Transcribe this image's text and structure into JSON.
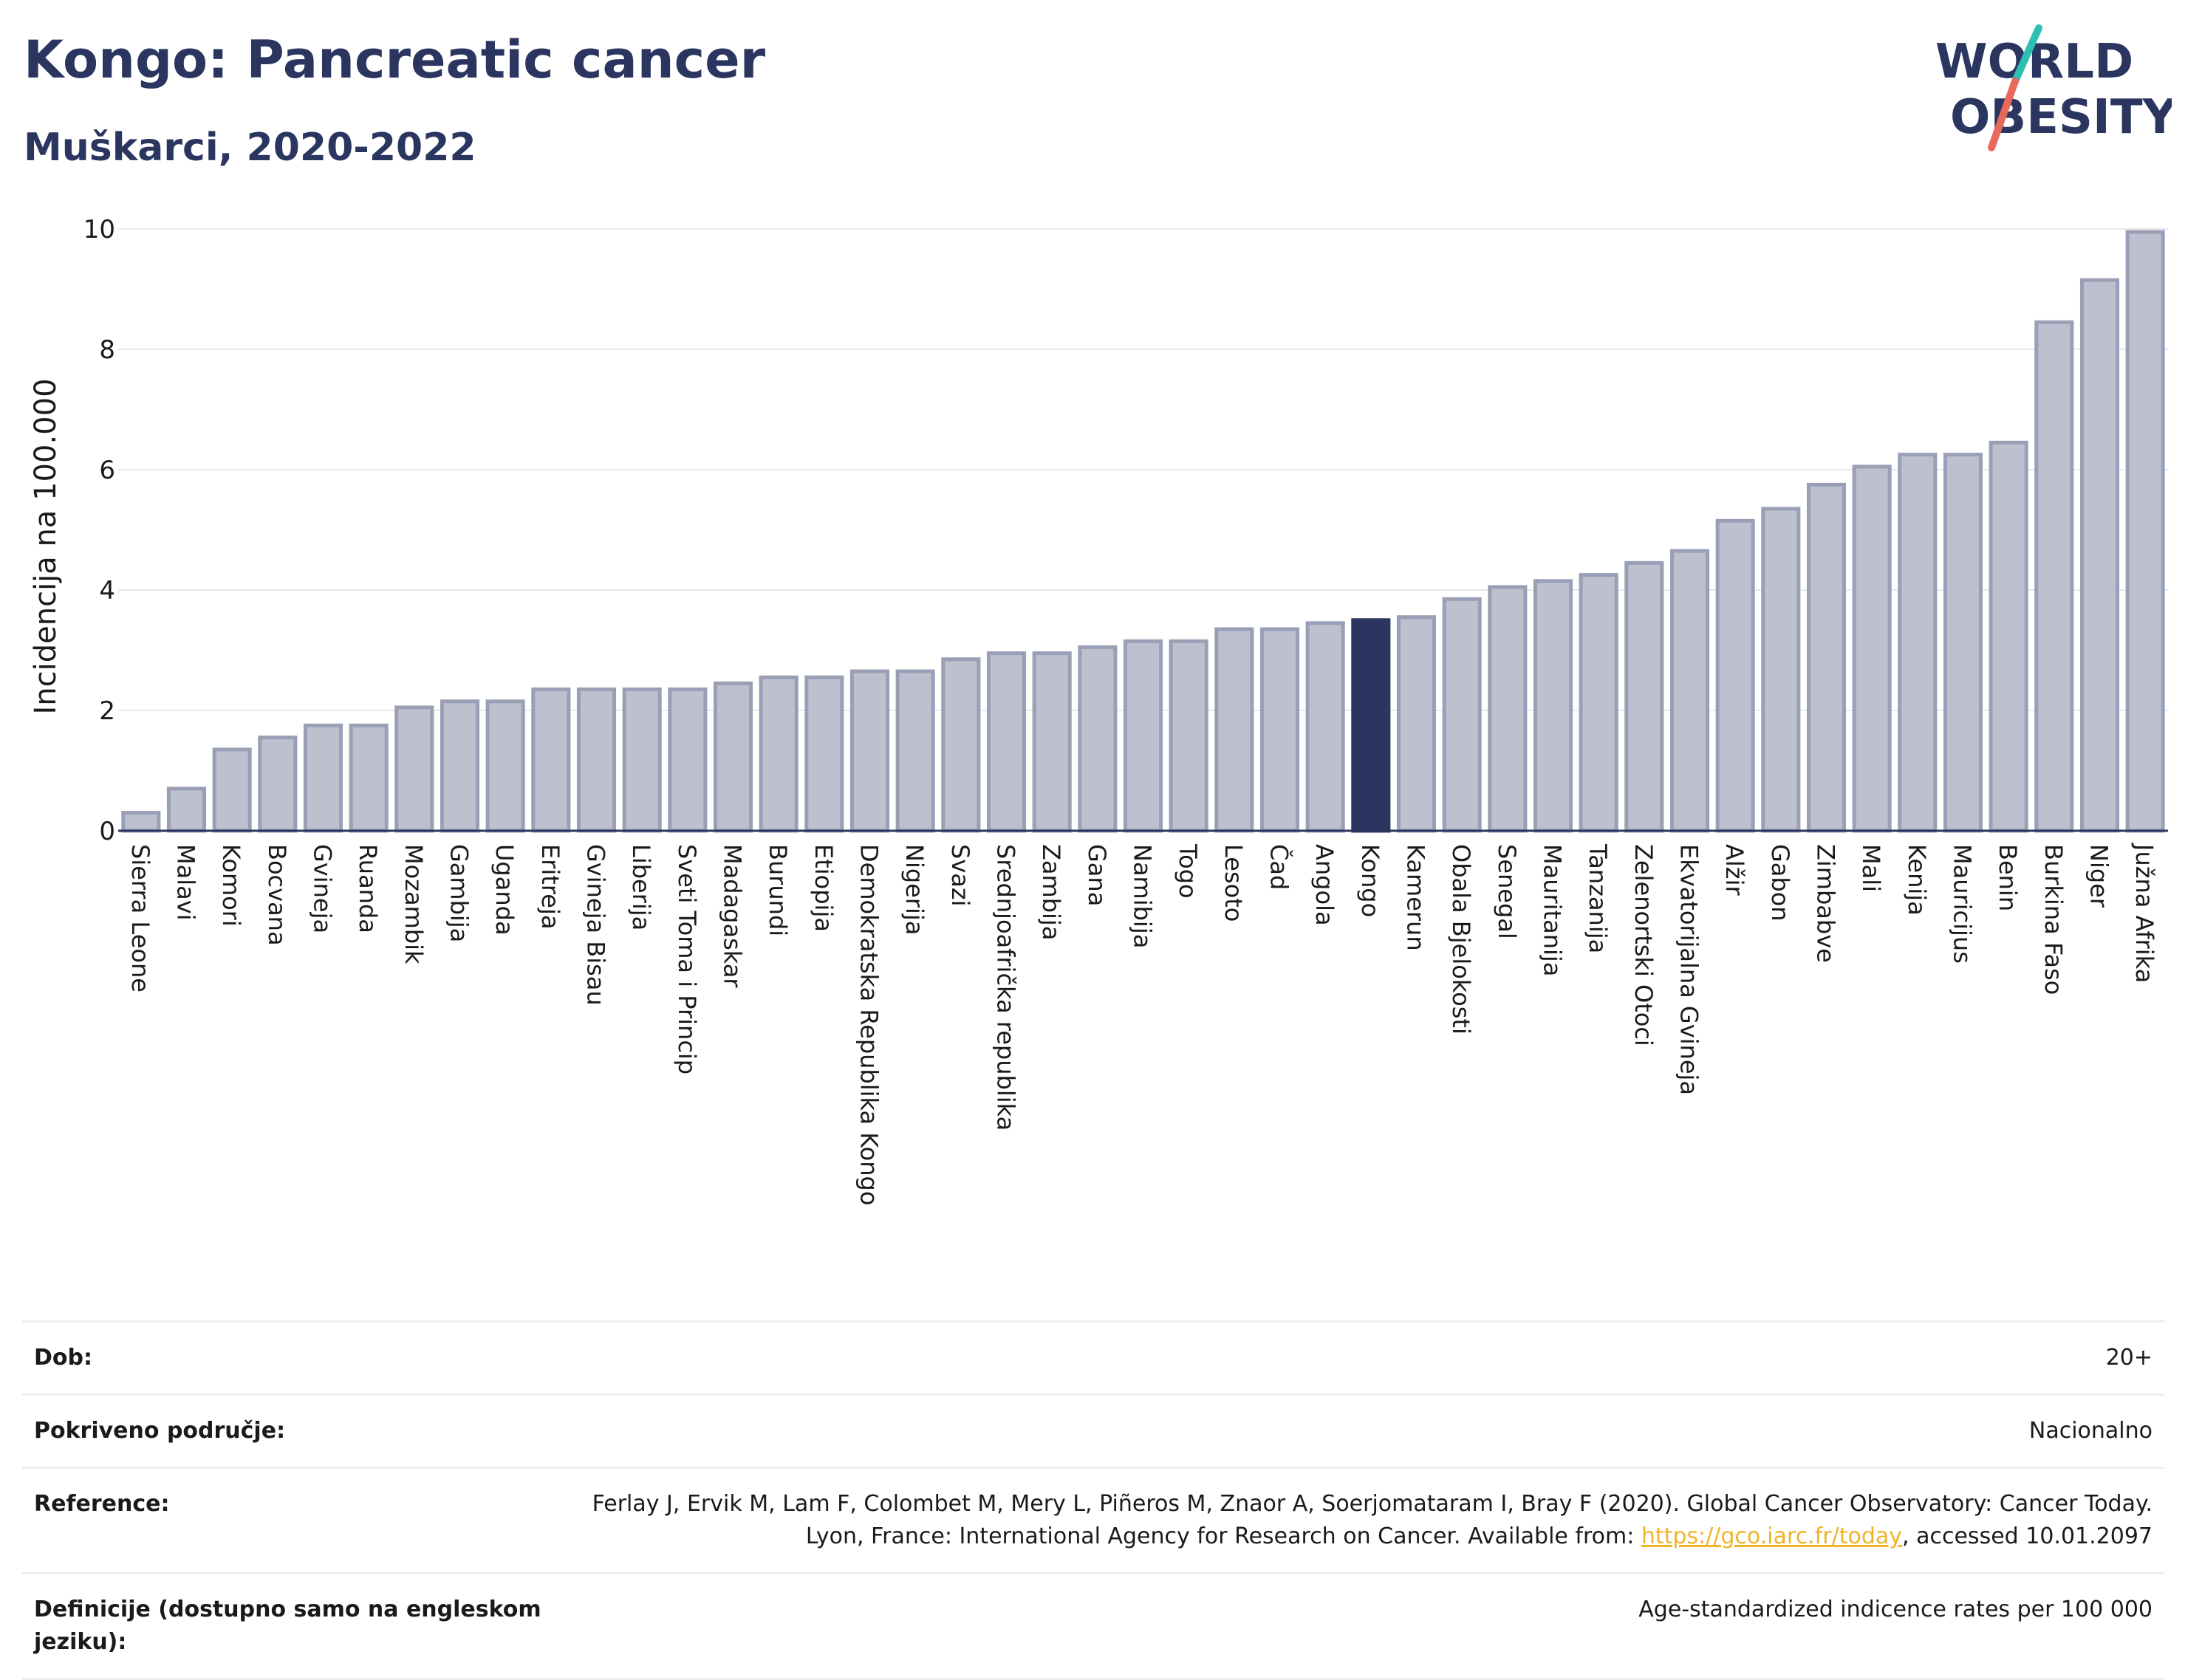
{
  "title": "Kongo: Pancreatic cancer",
  "subtitle": "Muškarci, 2020-2022",
  "logo": {
    "line1": "WORLD",
    "line2": "OBESITY",
    "accent_colors": [
      "#2fbfb2",
      "#e8685a"
    ]
  },
  "colors": {
    "bar": "#bcc0cf",
    "bar_edge": "#9a9fb6",
    "highlight": "#2b3660",
    "grid": "#e6e8ee",
    "link": "#f0b429"
  },
  "chart_data": {
    "type": "bar",
    "title": "Kongo: Pancreatic cancer",
    "subtitle": "Muškarci, 2020-2022",
    "xlabel": "",
    "ylabel": "Incidencija na 100.000",
    "ylim": [
      0,
      10
    ],
    "yticks": [
      0,
      2,
      4,
      6,
      8,
      10
    ],
    "grid": true,
    "highlight": "Kongo",
    "categories": [
      "Sierra Leone",
      "Malavi",
      "Komori",
      "Bocvana",
      "Gvineja",
      "Ruanda",
      "Mozambik",
      "Gambija",
      "Uganda",
      "Eritreja",
      "Gvineja Bisau",
      "Liberija",
      "Sveti Toma i Princip",
      "Madagaskar",
      "Burundi",
      "Etiopija",
      "Demokratska Republika Kongo",
      "Nigerija",
      "Svazi",
      "Srednjoafrička republika",
      "Zambija",
      "Gana",
      "Namibija",
      "Togo",
      "Lesoto",
      "Čad",
      "Angola",
      "Kongo",
      "Kamerun",
      "Obala Bjelokosti",
      "Senegal",
      "Mauritanija",
      "Tanzanija",
      "Zelenortski Otoci",
      "Ekvatorijalna Gvineja",
      "Alžir",
      "Gabon",
      "Zimbabve",
      "Mali",
      "Kenija",
      "Mauricijus",
      "Benin",
      "Burkina Faso",
      "Niger",
      "Južna Afrika"
    ],
    "values": [
      0.3,
      0.7,
      1.35,
      1.55,
      1.75,
      1.75,
      2.05,
      2.15,
      2.15,
      2.35,
      2.35,
      2.35,
      2.35,
      2.45,
      2.55,
      2.55,
      2.65,
      2.65,
      2.85,
      2.95,
      2.95,
      3.05,
      3.15,
      3.15,
      3.35,
      3.35,
      3.45,
      3.5,
      3.55,
      3.85,
      4.05,
      4.15,
      4.25,
      4.45,
      4.65,
      5.15,
      5.35,
      5.75,
      6.05,
      6.25,
      6.25,
      6.45,
      8.45,
      9.15,
      9.95
    ]
  },
  "meta": [
    {
      "label": "Dob:",
      "value": "20+"
    },
    {
      "label": "Pokriveno područje:",
      "value": "Nacionalno"
    },
    {
      "label": "Reference:",
      "value_before": "Ferlay J, Ervik M, Lam F, Colombet M, Mery L, Piñeros M, Znaor A, Soerjomataram I, Bray F (2020). Global Cancer Observatory: Cancer Today. Lyon, France: International Agency for Research on Cancer. Available from: ",
      "link": "https://gco.iarc.fr/today",
      "value_after": ", accessed 10.01.2097"
    },
    {
      "label": "Definicije (dostupno samo na engleskom jeziku):",
      "value": "Age-standardized indicence rates per 100 000"
    }
  ]
}
